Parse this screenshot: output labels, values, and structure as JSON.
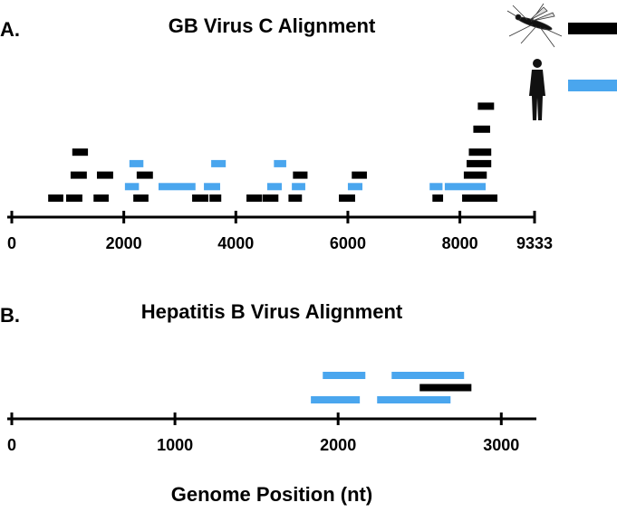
{
  "chart_data": [
    {
      "type": "segment",
      "panel": "A.",
      "title": "GB Virus C Alignment",
      "xlim": [
        0,
        9333
      ],
      "xticks": [
        0,
        2000,
        4000,
        6000,
        8000,
        9333
      ],
      "legend": "top-right",
      "series": [
        {
          "color": "#000000",
          "segments": [
            {
              "start": 650,
              "end": 920,
              "track": 0
            },
            {
              "start": 970,
              "end": 1260,
              "track": 0
            },
            {
              "start": 1460,
              "end": 1730,
              "track": 0
            },
            {
              "start": 2170,
              "end": 2440,
              "track": 0
            },
            {
              "start": 3220,
              "end": 3510,
              "track": 0
            },
            {
              "start": 3530,
              "end": 3740,
              "track": 0
            },
            {
              "start": 4190,
              "end": 4470,
              "track": 0
            },
            {
              "start": 4480,
              "end": 4760,
              "track": 0
            },
            {
              "start": 4940,
              "end": 5180,
              "track": 0
            },
            {
              "start": 5840,
              "end": 6130,
              "track": 0
            },
            {
              "start": 7510,
              "end": 7700,
              "track": 0
            },
            {
              "start": 8040,
              "end": 8670,
              "track": 0
            },
            {
              "start": 1050,
              "end": 1340,
              "track": 2
            },
            {
              "start": 1520,
              "end": 1810,
              "track": 2
            },
            {
              "start": 2230,
              "end": 2520,
              "track": 2
            },
            {
              "start": 5020,
              "end": 5280,
              "track": 2
            },
            {
              "start": 6070,
              "end": 6340,
              "track": 2
            },
            {
              "start": 8070,
              "end": 8480,
              "track": 2
            },
            {
              "start": 8120,
              "end": 8560,
              "track": 3
            },
            {
              "start": 1080,
              "end": 1360,
              "track": 4
            },
            {
              "start": 8160,
              "end": 8560,
              "track": 4
            },
            {
              "start": 8240,
              "end": 8540,
              "track": 6
            },
            {
              "start": 8320,
              "end": 8610,
              "track": 8
            }
          ]
        },
        {
          "color": "#4aa6ee",
          "segments": [
            {
              "start": 2020,
              "end": 2270,
              "track": 1
            },
            {
              "start": 2620,
              "end": 3280,
              "track": 1
            },
            {
              "start": 3430,
              "end": 3720,
              "track": 1
            },
            {
              "start": 4560,
              "end": 4820,
              "track": 1
            },
            {
              "start": 5000,
              "end": 5240,
              "track": 1
            },
            {
              "start": 6000,
              "end": 6260,
              "track": 1
            },
            {
              "start": 7460,
              "end": 7690,
              "track": 1
            },
            {
              "start": 7730,
              "end": 8460,
              "track": 1
            },
            {
              "start": 2100,
              "end": 2350,
              "track": 3
            },
            {
              "start": 3560,
              "end": 3820,
              "track": 3
            },
            {
              "start": 4680,
              "end": 4900,
              "track": 3
            }
          ]
        }
      ]
    },
    {
      "type": "segment",
      "panel": "B.",
      "title": "Hepatitis B Virus Alignment",
      "xlabel": "Genome Position (nt)",
      "xlim": [
        0,
        3215
      ],
      "xticks": [
        0,
        1000,
        2000,
        3000
      ],
      "series": [
        {
          "color": "#000000",
          "segments": [
            {
              "start": 2500,
              "end": 2817,
              "track": 1
            }
          ]
        },
        {
          "color": "#4aa6ee",
          "segments": [
            {
              "start": 1833,
              "end": 2133,
              "track": 0
            },
            {
              "start": 2239,
              "end": 2689,
              "track": 0
            },
            {
              "start": 1906,
              "end": 2167,
              "track": 2
            },
            {
              "start": 2328,
              "end": 2772,
              "track": 2
            }
          ]
        }
      ]
    }
  ]
}
